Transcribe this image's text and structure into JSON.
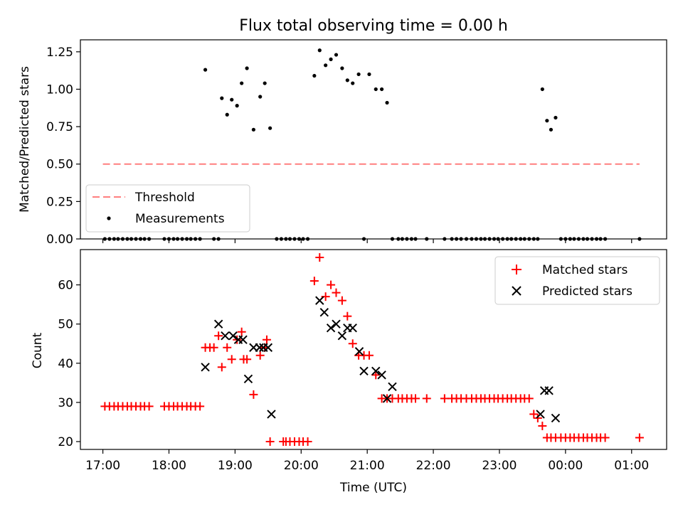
{
  "chart_data": [
    {
      "type": "scatter",
      "title": "Flux total observing time = 0.00 h",
      "xlabel": "",
      "ylabel": "Matched/Predicted stars",
      "xlim": [
        16.66,
        25.53
      ],
      "ylim": [
        0.0,
        1.33
      ],
      "yticks": [
        0.0,
        0.25,
        0.5,
        0.75,
        1.0,
        1.25
      ],
      "ytick_labels": [
        "0.00",
        "0.25",
        "0.50",
        "0.75",
        "1.00",
        "1.25"
      ],
      "legend": [
        "Threshold",
        "Measurements"
      ],
      "legend_position": "lower-left",
      "threshold": {
        "name": "Threshold",
        "value": 0.5,
        "x": [
          17.0,
          25.12
        ],
        "color": "#ff7f7f"
      },
      "measurements": {
        "name": "Measurements",
        "color": "#000000",
        "x": [
          17.03,
          17.1,
          17.17,
          17.23,
          17.3,
          17.37,
          17.43,
          17.5,
          17.57,
          17.63,
          17.7,
          17.93,
          18.0,
          18.07,
          18.13,
          18.2,
          18.27,
          18.33,
          18.4,
          18.47,
          18.55,
          18.68,
          18.75,
          18.8,
          18.88,
          18.95,
          19.03,
          19.1,
          19.18,
          19.28,
          19.38,
          19.45,
          19.53,
          19.63,
          19.7,
          19.77,
          19.83,
          19.9,
          19.97,
          20.03,
          20.1,
          20.2,
          20.28,
          20.37,
          20.45,
          20.53,
          20.62,
          20.7,
          20.78,
          20.87,
          20.95,
          21.03,
          21.13,
          21.22,
          21.3,
          21.38,
          21.47,
          21.53,
          21.6,
          21.67,
          21.73,
          21.9,
          22.17,
          22.28,
          22.35,
          22.42,
          22.5,
          22.58,
          22.65,
          22.72,
          22.78,
          22.85,
          22.92,
          22.98,
          23.05,
          23.12,
          23.18,
          23.25,
          23.32,
          23.38,
          23.45,
          23.52,
          23.58,
          23.65,
          23.72,
          23.78,
          23.85,
          23.93,
          24.0,
          24.07,
          24.13,
          24.2,
          24.27,
          24.33,
          24.4,
          24.47,
          24.53,
          24.6,
          25.12
        ],
        "y": [
          0.0,
          0.0,
          0.0,
          0.0,
          0.0,
          0.0,
          0.0,
          0.0,
          0.0,
          0.0,
          0.0,
          0.0,
          0.0,
          0.0,
          0.0,
          0.0,
          0.0,
          0.0,
          0.0,
          0.0,
          1.13,
          0.0,
          0.0,
          0.94,
          0.83,
          0.93,
          0.89,
          1.04,
          1.14,
          0.73,
          0.95,
          1.04,
          0.74,
          0.0,
          0.0,
          0.0,
          0.0,
          0.0,
          0.0,
          0.0,
          0.0,
          1.09,
          1.26,
          1.16,
          1.2,
          1.23,
          1.14,
          1.06,
          1.04,
          1.1,
          0.0,
          1.1,
          1.0,
          1.0,
          0.91,
          0.0,
          0.0,
          0.0,
          0.0,
          0.0,
          0.0,
          0.0,
          0.0,
          0.0,
          0.0,
          0.0,
          0.0,
          0.0,
          0.0,
          0.0,
          0.0,
          0.0,
          0.0,
          0.0,
          0.0,
          0.0,
          0.0,
          0.0,
          0.0,
          0.0,
          0.0,
          0.0,
          0.0,
          1.0,
          0.79,
          0.73,
          0.81,
          0.0,
          0.0,
          0.0,
          0.0,
          0.0,
          0.0,
          0.0,
          0.0,
          0.0,
          0.0,
          0.0,
          0.0
        ]
      }
    },
    {
      "type": "scatter",
      "title": "",
      "xlabel": "Time (UTC)",
      "ylabel": "Count",
      "xlim": [
        16.66,
        25.53
      ],
      "ylim": [
        18.0,
        69.0
      ],
      "yticks": [
        20,
        30,
        40,
        50,
        60
      ],
      "ytick_labels": [
        "20",
        "30",
        "40",
        "50",
        "60"
      ],
      "xticks": [
        17,
        18,
        19,
        20,
        21,
        22,
        23,
        24,
        25
      ],
      "xtick_labels": [
        "17:00",
        "18:00",
        "19:00",
        "20:00",
        "21:00",
        "22:00",
        "23:00",
        "00:00",
        "01:00"
      ],
      "legend": [
        "Matched stars",
        "Predicted stars"
      ],
      "legend_position": "top-right",
      "series": [
        {
          "name": "Matched stars",
          "marker": "+",
          "color": "#ff0000",
          "x": [
            17.03,
            17.1,
            17.17,
            17.23,
            17.3,
            17.37,
            17.43,
            17.5,
            17.57,
            17.63,
            17.7,
            17.93,
            18.0,
            18.07,
            18.13,
            18.2,
            18.27,
            18.33,
            18.4,
            18.47,
            18.55,
            18.62,
            18.68,
            18.75,
            18.8,
            18.88,
            18.95,
            19.03,
            19.1,
            19.13,
            19.18,
            19.28,
            19.38,
            19.45,
            19.48,
            19.53,
            19.73,
            19.77,
            19.83,
            19.9,
            19.97,
            20.03,
            20.1,
            20.2,
            20.28,
            20.37,
            20.45,
            20.53,
            20.62,
            20.7,
            20.78,
            20.87,
            20.95,
            21.03,
            21.13,
            21.22,
            21.3,
            21.38,
            21.47,
            21.53,
            21.6,
            21.67,
            21.73,
            21.9,
            22.17,
            22.28,
            22.35,
            22.42,
            22.5,
            22.58,
            22.65,
            22.72,
            22.78,
            22.85,
            22.92,
            22.98,
            23.05,
            23.12,
            23.18,
            23.25,
            23.32,
            23.38,
            23.45,
            23.52,
            23.58,
            23.65,
            23.72,
            23.78,
            23.85,
            23.93,
            24.0,
            24.07,
            24.13,
            24.2,
            24.27,
            24.33,
            24.4,
            24.47,
            24.53,
            24.6,
            25.12
          ],
          "y": [
            29,
            29,
            29,
            29,
            29,
            29,
            29,
            29,
            29,
            29,
            29,
            29,
            29,
            29,
            29,
            29,
            29,
            29,
            29,
            29,
            44,
            44,
            44,
            47,
            39,
            44,
            41,
            46,
            48,
            41,
            41,
            32,
            42,
            44,
            46,
            20,
            20,
            20,
            20,
            20,
            20,
            20,
            20,
            61,
            67,
            57,
            60,
            58,
            56,
            52,
            45,
            42,
            42,
            42,
            37,
            31,
            31,
            31,
            31,
            31,
            31,
            31,
            31,
            31,
            31,
            31,
            31,
            31,
            31,
            31,
            31,
            31,
            31,
            31,
            31,
            31,
            31,
            31,
            31,
            31,
            31,
            31,
            31,
            27,
            26,
            24,
            21,
            21,
            21,
            21,
            21,
            21,
            21,
            21,
            21,
            21,
            21,
            21,
            21,
            21,
            21
          ]
        },
        {
          "name": "Predicted stars",
          "marker": "x",
          "color": "#000000",
          "x": [
            18.55,
            18.75,
            18.85,
            18.97,
            19.05,
            19.12,
            19.2,
            19.28,
            19.37,
            19.43,
            19.5,
            19.55,
            20.28,
            20.35,
            20.45,
            20.53,
            20.62,
            20.7,
            20.78,
            20.88,
            20.95,
            21.13,
            21.22,
            21.3,
            21.38,
            23.62,
            23.68,
            23.75,
            23.85
          ],
          "y": [
            39,
            50,
            47,
            47,
            46,
            46,
            36,
            44,
            44,
            44,
            44,
            27,
            56,
            53,
            49,
            50,
            47,
            49,
            49,
            43,
            38,
            38,
            37,
            31,
            34,
            27,
            33,
            33,
            26
          ]
        }
      ]
    }
  ]
}
